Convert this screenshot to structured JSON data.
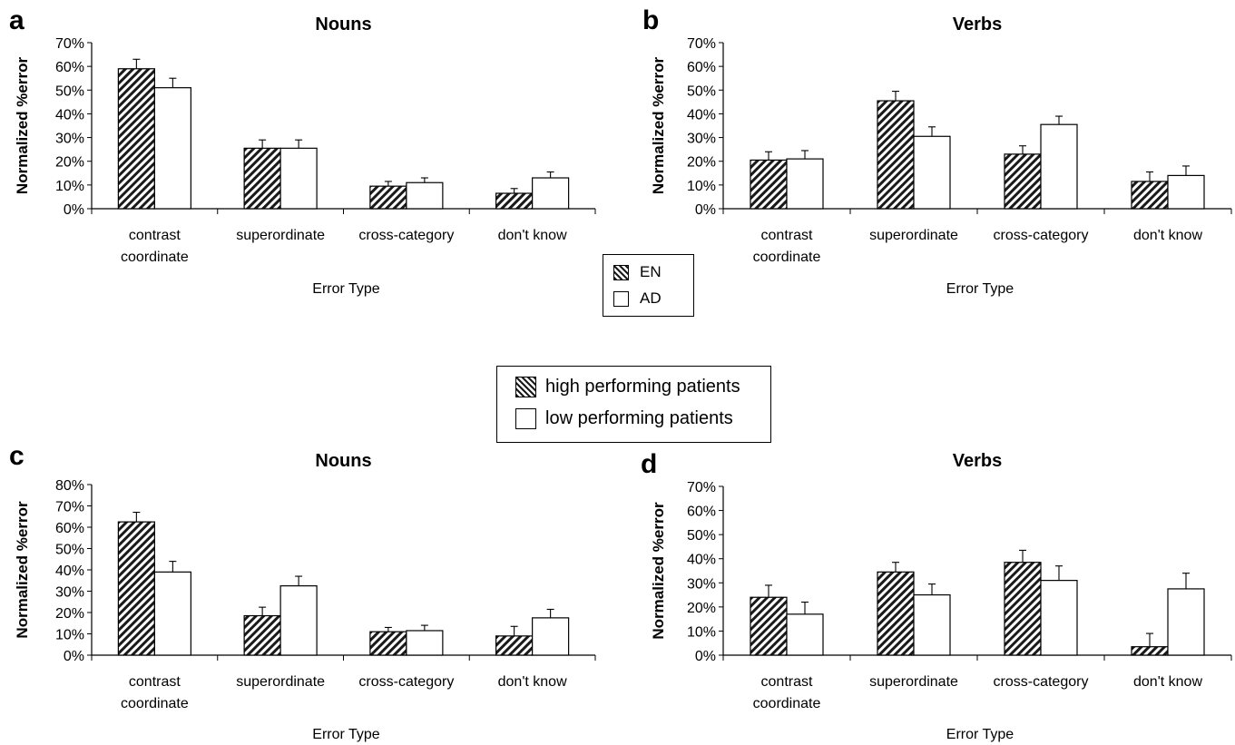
{
  "chart_data": [
    {
      "id": "a",
      "type": "bar",
      "panel_letter": "a",
      "title": "Nouns",
      "xlabel": "Error Type",
      "ylabel": "Normalized %error",
      "ylim": [
        0,
        70
      ],
      "yticks": [
        "0%",
        "10%",
        "20%",
        "30%",
        "40%",
        "50%",
        "60%",
        "70%"
      ],
      "categories": [
        [
          "contrast",
          "coordinate"
        ],
        [
          "superordinate"
        ],
        [
          "cross-category"
        ],
        [
          "don't know"
        ]
      ],
      "series": [
        {
          "name": "EN",
          "values": [
            59,
            25.5,
            9.5,
            6.5
          ],
          "errors": [
            4,
            3.5,
            2,
            2
          ],
          "pattern": "hatched"
        },
        {
          "name": "AD",
          "values": [
            51,
            25.5,
            11,
            13
          ],
          "errors": [
            4,
            3.5,
            2,
            2.5
          ],
          "pattern": "white"
        }
      ]
    },
    {
      "id": "b",
      "type": "bar",
      "panel_letter": "b",
      "title": "Verbs",
      "xlabel": "Error Type",
      "ylabel": "Normalized %error",
      "ylim": [
        0,
        70
      ],
      "yticks": [
        "0%",
        "10%",
        "20%",
        "30%",
        "40%",
        "50%",
        "60%",
        "70%"
      ],
      "categories": [
        [
          "contrast",
          "coordinate"
        ],
        [
          "superordinate"
        ],
        [
          "cross-category"
        ],
        [
          "don't know"
        ]
      ],
      "series": [
        {
          "name": "EN",
          "values": [
            20.5,
            45.5,
            23,
            11.5
          ],
          "errors": [
            3.5,
            4,
            3.5,
            4
          ],
          "pattern": "hatched"
        },
        {
          "name": "AD",
          "values": [
            21,
            30.5,
            35.5,
            14
          ],
          "errors": [
            3.5,
            4,
            3.5,
            4
          ],
          "pattern": "white"
        }
      ]
    },
    {
      "id": "c",
      "type": "bar",
      "panel_letter": "c",
      "title": "Nouns",
      "xlabel": "Error Type",
      "ylabel": "Normalized %error",
      "ylim": [
        0,
        80
      ],
      "yticks": [
        "0%",
        "10%",
        "20%",
        "30%",
        "40%",
        "50%",
        "60%",
        "70%",
        "80%"
      ],
      "categories": [
        [
          "contrast",
          "coordinate"
        ],
        [
          "superordinate"
        ],
        [
          "cross-category"
        ],
        [
          "don't know"
        ]
      ],
      "series": [
        {
          "name": "high performing patients",
          "values": [
            62.5,
            18.5,
            11,
            9
          ],
          "errors": [
            4.5,
            4,
            2,
            4.5
          ],
          "pattern": "hatched"
        },
        {
          "name": "low performing patients",
          "values": [
            39,
            32.5,
            11.5,
            17.5
          ],
          "errors": [
            5,
            4.5,
            2.5,
            4
          ],
          "pattern": "white"
        }
      ]
    },
    {
      "id": "d",
      "type": "bar",
      "panel_letter": "d",
      "title": "Verbs",
      "xlabel": "Error Type",
      "ylabel": "Normalized %error",
      "ylim": [
        0,
        70
      ],
      "yticks": [
        "0%",
        "10%",
        "20%",
        "30%",
        "40%",
        "50%",
        "60%",
        "70%"
      ],
      "categories": [
        [
          "contrast",
          "coordinate"
        ],
        [
          "superordinate"
        ],
        [
          "cross-category"
        ],
        [
          "don't know"
        ]
      ],
      "series": [
        {
          "name": "high performing patients",
          "values": [
            24,
            34.5,
            38.5,
            3.5
          ],
          "errors": [
            5,
            4,
            5,
            5.5
          ],
          "pattern": "hatched"
        },
        {
          "name": "low performing patients",
          "values": [
            17,
            25,
            31,
            27.5
          ],
          "errors": [
            5,
            4.5,
            6,
            6.5
          ],
          "pattern": "white"
        }
      ]
    }
  ],
  "legends": {
    "group": {
      "items": [
        {
          "label": "EN",
          "pattern": "hatched"
        },
        {
          "label": "AD",
          "pattern": "white"
        }
      ]
    },
    "performance": {
      "items": [
        {
          "label": "high performing patients",
          "pattern": "hatched"
        },
        {
          "label": "low performing patients",
          "pattern": "white"
        }
      ]
    }
  },
  "colors": {
    "bar_hatch": "#1a1a1a",
    "bar_fill": "#ffffff",
    "axis": "#000000",
    "background": "#ffffff"
  }
}
